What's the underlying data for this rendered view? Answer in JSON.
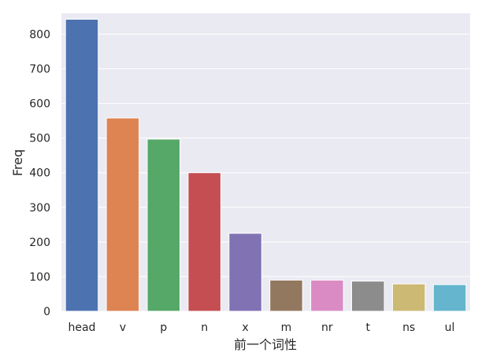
{
  "chart_data": {
    "type": "bar",
    "title": "",
    "xlabel": "前一个词性",
    "ylabel": "Freq",
    "ylim": [
      0,
      860
    ],
    "yticks": [
      0,
      100,
      200,
      300,
      400,
      500,
      600,
      700,
      800
    ],
    "grid": true,
    "categories": [
      "head",
      "v",
      "p",
      "n",
      "x",
      "m",
      "nr",
      "t",
      "ns",
      "ul"
    ],
    "values": [
      843,
      558,
      497,
      400,
      225,
      90,
      90,
      87,
      79,
      77
    ],
    "colors": [
      "#4c72b0",
      "#dd8452",
      "#55a868",
      "#c44e52",
      "#8172b3",
      "#937860",
      "#da8bc3",
      "#8c8c8c",
      "#ccb974",
      "#64b5cd"
    ]
  }
}
